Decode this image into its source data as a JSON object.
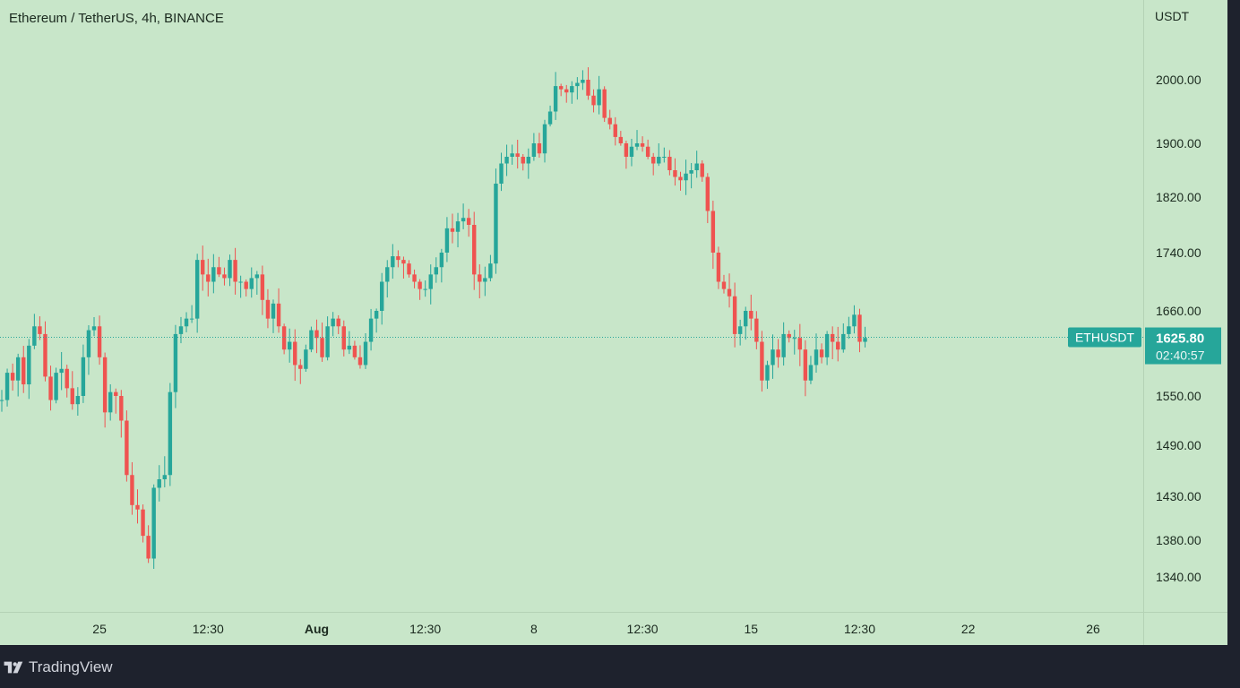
{
  "header": {
    "title": "Ethereum / TetherUS, 4h, BINANCE"
  },
  "footer": {
    "brand": "TradingView"
  },
  "colors": {
    "up": "#26a69a",
    "down": "#ef5350",
    "background": "#c8e6c9"
  },
  "chart_data": {
    "type": "candlestick",
    "symbol": "ETHUSDT",
    "currency_label": "USDT",
    "last_price": 1625.8,
    "last_price_label": "1625.80",
    "countdown_label": "02:40:57",
    "y_ticks": [
      {
        "value": 2000,
        "label": "2000.00"
      },
      {
        "value": 1900,
        "label": "1900.00"
      },
      {
        "value": 1820,
        "label": "1820.00"
      },
      {
        "value": 1740,
        "label": "1740.00"
      },
      {
        "value": 1660,
        "label": "1660.00"
      },
      {
        "value": 1550,
        "label": "1550.00"
      },
      {
        "value": 1490,
        "label": "1490.00"
      },
      {
        "value": 1430,
        "label": "1430.00"
      },
      {
        "value": 1380,
        "label": "1380.00"
      },
      {
        "value": 1340,
        "label": "1340.00"
      }
    ],
    "x_ticks": [
      {
        "index": 18,
        "label": "25",
        "bold": false
      },
      {
        "index": 38,
        "label": "12:30",
        "bold": false
      },
      {
        "index": 58,
        "label": "Aug",
        "bold": true
      },
      {
        "index": 78,
        "label": "12:30",
        "bold": false
      },
      {
        "index": 98,
        "label": "8",
        "bold": false
      },
      {
        "index": 118,
        "label": "12:30",
        "bold": false
      },
      {
        "index": 138,
        "label": "15",
        "bold": false
      },
      {
        "index": 158,
        "label": "12:30",
        "bold": false
      },
      {
        "index": 178,
        "label": "22",
        "bold": false
      },
      {
        "index": 201,
        "label": "26",
        "bold": false
      }
    ],
    "close_path": [
      1545,
      1580,
      1570,
      1600,
      1565,
      1615,
      1640,
      1630,
      1575,
      1545,
      1580,
      1585,
      1560,
      1540,
      1550,
      1600,
      1635,
      1640,
      1600,
      1530,
      1555,
      1550,
      1520,
      1455,
      1420,
      1415,
      1385,
      1360,
      1440,
      1450,
      1455,
      1555,
      1630,
      1640,
      1650,
      1650,
      1730,
      1710,
      1700,
      1720,
      1710,
      1705,
      1730,
      1700,
      1700,
      1690,
      1705,
      1710,
      1675,
      1650,
      1670,
      1640,
      1610,
      1620,
      1590,
      1585,
      1610,
      1635,
      1625,
      1600,
      1640,
      1650,
      1640,
      1610,
      1615,
      1600,
      1590,
      1620,
      1650,
      1660,
      1700,
      1720,
      1735,
      1730,
      1725,
      1710,
      1700,
      1690,
      1690,
      1710,
      1720,
      1740,
      1775,
      1770,
      1785,
      1790,
      1780,
      1710,
      1700,
      1705,
      1725,
      1840,
      1870,
      1880,
      1885,
      1880,
      1870,
      1880,
      1900,
      1885,
      1930,
      1950,
      1990,
      1985,
      1980,
      1990,
      1995,
      2000,
      1975,
      1960,
      1985,
      1940,
      1930,
      1910,
      1900,
      1880,
      1895,
      1900,
      1895,
      1880,
      1870,
      1880,
      1880,
      1860,
      1850,
      1845,
      1855,
      1860,
      1870,
      1850,
      1800,
      1740,
      1700,
      1690,
      1680,
      1630,
      1640,
      1660,
      1650,
      1620,
      1570,
      1590,
      1610,
      1600,
      1630,
      1625,
      1625,
      1610,
      1570,
      1590,
      1610,
      1600,
      1630,
      1620,
      1610,
      1630,
      1640,
      1655,
      1620,
      1625
    ]
  }
}
